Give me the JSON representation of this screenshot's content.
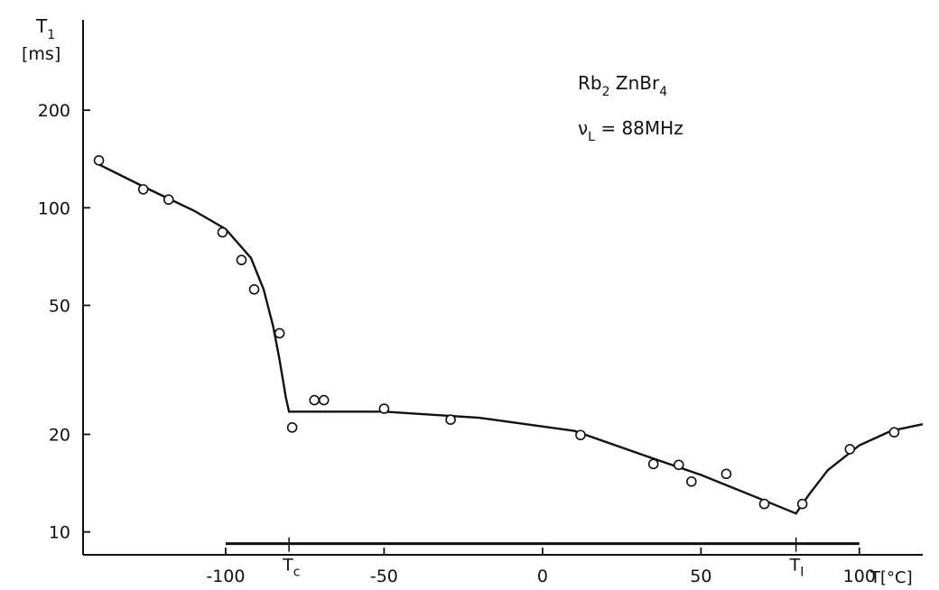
{
  "chart_data": {
    "type": "scatter",
    "y_axis_label": "T",
    "y_axis_label_sub": "1",
    "y_unit": "[ms]",
    "x_axis_label": "T[°C]",
    "y_scale": "log",
    "xlim": [
      -145,
      120
    ],
    "ylim": [
      8.5,
      380
    ],
    "x_ticks": [
      -100,
      -50,
      0,
      50,
      100
    ],
    "x_tick_labels": [
      "-100",
      "-50",
      "0",
      "50",
      "100"
    ],
    "y_ticks": [
      200,
      100,
      50,
      20,
      10
    ],
    "y_tick_labels": [
      "200",
      "100",
      "50",
      "20",
      "10"
    ],
    "annotation_compound": {
      "parts": [
        "Rb",
        "2",
        " ZnBr",
        "4"
      ]
    },
    "annotation_frequency": {
      "symbol": "ν",
      "sub": "L",
      "text": " = 88MHz"
    },
    "transition_markers": [
      {
        "x": -80,
        "label": "T",
        "sub": "c"
      },
      {
        "x": 80,
        "label": "T",
        "sub": "I"
      }
    ],
    "range_bar": {
      "x_start": -100,
      "x_end": 100,
      "y": 9.2
    },
    "points": [
      {
        "x": -140,
        "y": 140
      },
      {
        "x": -126,
        "y": 114
      },
      {
        "x": -118,
        "y": 106
      },
      {
        "x": -101,
        "y": 84
      },
      {
        "x": -95,
        "y": 69
      },
      {
        "x": -91,
        "y": 56
      },
      {
        "x": -83,
        "y": 41
      },
      {
        "x": -79,
        "y": 21
      },
      {
        "x": -72,
        "y": 25.5
      },
      {
        "x": -69,
        "y": 25.5
      },
      {
        "x": -50,
        "y": 24
      },
      {
        "x": -29,
        "y": 22.2
      },
      {
        "x": 12,
        "y": 19.9
      },
      {
        "x": 35,
        "y": 16.2
      },
      {
        "x": 43,
        "y": 16.1
      },
      {
        "x": 47,
        "y": 14.3
      },
      {
        "x": 58,
        "y": 15.1
      },
      {
        "x": 70,
        "y": 12.2
      },
      {
        "x": 82,
        "y": 12.2
      },
      {
        "x": 97,
        "y": 18
      },
      {
        "x": 111,
        "y": 20.3
      }
    ],
    "fit_curve": [
      [
        -140,
        136
      ],
      [
        -125,
        115
      ],
      [
        -110,
        98
      ],
      [
        -100,
        86
      ],
      [
        -92,
        70
      ],
      [
        -88,
        56
      ],
      [
        -85,
        43
      ],
      [
        -83,
        34
      ],
      [
        -81,
        26
      ],
      [
        -80,
        23.5
      ],
      [
        -50,
        23.5
      ],
      [
        -20,
        22.5
      ],
      [
        10,
        20.5
      ],
      [
        30,
        17.5
      ],
      [
        50,
        15
      ],
      [
        70,
        12.5
      ],
      [
        80,
        11.4
      ],
      [
        84,
        13
      ],
      [
        90,
        15.5
      ],
      [
        100,
        18.5
      ],
      [
        110,
        20.5
      ],
      [
        120,
        21.5
      ]
    ]
  }
}
